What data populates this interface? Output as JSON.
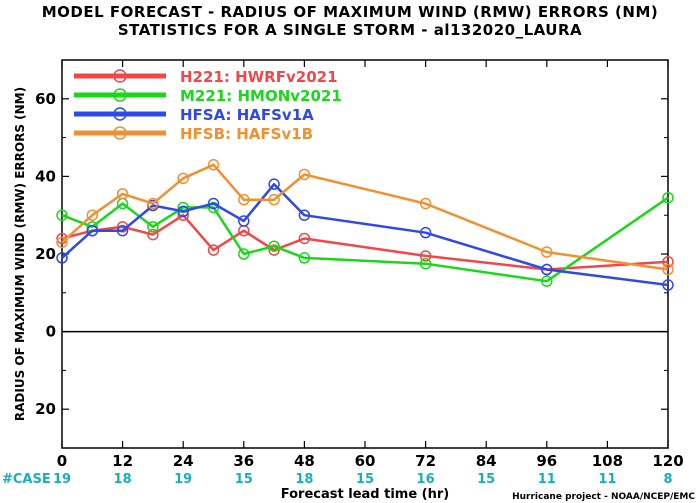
{
  "chart_data": {
    "type": "line",
    "title": "MODEL FORECAST - RADIUS OF MAXIMUM WIND (RMW) ERRORS (NM)",
    "subtitle": "STATISTICS FOR A SINGLE STORM - al132020_LAURA",
    "xlabel": "Forecast lead time (hr)",
    "ylabel": "RADIUS OF MAXIMUM WIND (RMW) ERRORS (NM)",
    "xlim": [
      0,
      120
    ],
    "ylim": [
      -30,
      70
    ],
    "xticks": [
      0,
      12,
      24,
      36,
      48,
      60,
      72,
      84,
      96,
      108,
      120
    ],
    "yticks": [
      -20,
      0,
      20,
      40,
      60
    ],
    "ytick_labels": [
      "20",
      "0",
      "20",
      "40",
      "60"
    ],
    "zero_line": true,
    "grid": false,
    "legend_position": "top-left",
    "case_label": "#CASE",
    "case_counts": [
      "19",
      "18",
      "19",
      "15",
      "18",
      "15",
      "16",
      "15",
      "11",
      "11",
      "8"
    ],
    "credit": "Hurricane project - NOAA/NCEP/EMC",
    "series": [
      {
        "name": "H221:  HWRFv2021",
        "color": "#f04848",
        "x": [
          0,
          6,
          12,
          18,
          24,
          30,
          36,
          42,
          48,
          72,
          96,
          120
        ],
        "y": [
          24,
          26,
          27,
          25,
          30,
          21,
          26,
          21,
          24,
          19.5,
          16,
          18
        ]
      },
      {
        "name": "M221:  HMONv2021",
        "color": "#18d818",
        "x": [
          0,
          6,
          12,
          18,
          24,
          30,
          36,
          42,
          48,
          72,
          96,
          120
        ],
        "y": [
          30,
          27,
          33,
          27,
          32,
          32,
          20,
          22,
          19,
          17.5,
          13,
          34.5
        ]
      },
      {
        "name": "HFSA:  HAFSv1A",
        "color": "#3048e8",
        "x": [
          0,
          6,
          12,
          18,
          24,
          30,
          36,
          42,
          48,
          72,
          96,
          120
        ],
        "y": [
          19,
          26,
          26,
          32.5,
          31,
          33,
          28.5,
          38,
          30,
          25.5,
          16,
          12
        ]
      },
      {
        "name": "HFSB:  HAFSv1B",
        "color": "#f09030",
        "x": [
          0,
          6,
          12,
          18,
          24,
          30,
          36,
          42,
          48,
          72,
          96,
          120
        ],
        "y": [
          23,
          30,
          35.5,
          33,
          39.5,
          43,
          34,
          34,
          40.5,
          33,
          20.5,
          16
        ]
      }
    ]
  }
}
